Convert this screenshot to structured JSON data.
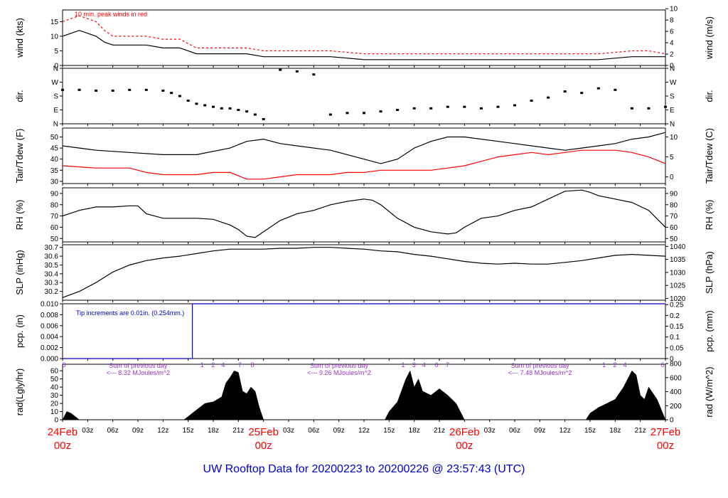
{
  "title": "UW Rooftop Data for 20200223  to  20200226 @ 23:57:43  (UTC)",
  "colors": {
    "series": "#000000",
    "peak": "#ff0000",
    "annotation": "#0000cc",
    "radnote": "#9933cc",
    "datelabel": "#ff0000",
    "title": "#0000cc"
  },
  "time_axis": {
    "range_hours": [
      0,
      72
    ],
    "major_labels": [
      {
        "hour": 0,
        "date": "24Feb",
        "zulu": "00z"
      },
      {
        "hour": 24,
        "date": "25Feb",
        "zulu": "00z"
      },
      {
        "hour": 48,
        "date": "26Feb",
        "zulu": "00z"
      },
      {
        "hour": 72,
        "date": "27Feb",
        "zulu": "00z"
      }
    ],
    "minor_labels": [
      "03z",
      "06z",
      "09z",
      "12z",
      "15z",
      "18z",
      "21z"
    ]
  },
  "chart_data": [
    {
      "type": "line",
      "panel": "wind",
      "ylabel_left": "wind (kts)",
      "ylabel_right": "wind (m/s)",
      "ylim": [
        0,
        19
      ],
      "yticks_left": [
        "0",
        "5",
        "10",
        "15"
      ],
      "yticks_right": [
        "0",
        "2",
        "4",
        "6",
        "8",
        "10"
      ],
      "annotation": "10 min. peak winds in red",
      "series": [
        {
          "name": "",
          "x": [
            0,
            1,
            2,
            3,
            4,
            5,
            6,
            8,
            10,
            12,
            14,
            16,
            18,
            20,
            22,
            24,
            28,
            32,
            36,
            40,
            44,
            48,
            52,
            56,
            60,
            64,
            68,
            70,
            72
          ],
          "y": [
            10,
            11,
            12,
            11,
            10,
            8,
            7,
            7,
            7,
            6,
            6,
            4,
            4,
            4,
            4,
            3,
            3,
            3,
            2,
            2,
            2,
            2,
            2,
            2,
            2,
            2,
            3,
            3,
            3
          ]
        },
        {
          "name": "",
          "x": [
            0,
            1,
            2,
            3,
            4,
            5,
            6,
            8,
            10,
            12,
            14,
            16,
            18,
            20,
            22,
            24,
            28,
            32,
            36,
            40,
            44,
            48,
            52,
            56,
            60,
            64,
            68,
            70,
            72
          ],
          "y": [
            15,
            16,
            17,
            16,
            15,
            12,
            10,
            10,
            10,
            9,
            9,
            6,
            6,
            6,
            6,
            5,
            5,
            5,
            4,
            4,
            4,
            4,
            4,
            4,
            4,
            4,
            5,
            5,
            4
          ]
        }
      ]
    },
    {
      "type": "scatter",
      "panel": "dir",
      "ylabel_left": "dir.",
      "ylabel_right": "dir.",
      "yticks_left": [
        "N",
        "E",
        "S",
        "W",
        "N"
      ],
      "yticks_right": [
        "N",
        "E",
        "S",
        "W",
        "N"
      ],
      "series": [
        {
          "name": "",
          "x": [
            0,
            2,
            4,
            6,
            8,
            10,
            12,
            13,
            14,
            15,
            16,
            17,
            18,
            19,
            20,
            21,
            22,
            23,
            24,
            26,
            28,
            30,
            32,
            34,
            36,
            38,
            40,
            42,
            44,
            46,
            48,
            50,
            52,
            54,
            56,
            58,
            60,
            62,
            64,
            66,
            68,
            70,
            72
          ],
          "y": [
            220,
            220,
            215,
            215,
            220,
            220,
            215,
            200,
            180,
            150,
            130,
            120,
            110,
            100,
            100,
            90,
            80,
            60,
            30,
            350,
            340,
            320,
            60,
            70,
            70,
            80,
            90,
            100,
            100,
            110,
            110,
            100,
            110,
            120,
            150,
            170,
            210,
            200,
            230,
            220,
            100,
            100,
            110
          ]
        }
      ]
    },
    {
      "type": "line",
      "panel": "temperature",
      "ylabel_left": "Tair/Tdew (F)",
      "ylabel_right": "Tair/Tdew (C)",
      "ylim": [
        29,
        54
      ],
      "yticks_left": [
        "30",
        "35",
        "40",
        "45",
        "50"
      ],
      "yticks_right": [
        "0",
        "5",
        "10"
      ],
      "series": [
        {
          "name": "",
          "x": [
            0,
            4,
            8,
            12,
            16,
            20,
            22,
            24,
            26,
            28,
            32,
            36,
            38,
            40,
            42,
            44,
            46,
            48,
            50,
            52,
            54,
            56,
            58,
            60,
            62,
            64,
            66,
            68,
            70,
            72
          ],
          "y": [
            46,
            44,
            43,
            42,
            42,
            45,
            48,
            49,
            47,
            46,
            44,
            40,
            38,
            40,
            45,
            48,
            50,
            50,
            49,
            48,
            47,
            46,
            45,
            44,
            45,
            46,
            47,
            49,
            50,
            52
          ]
        },
        {
          "name": "",
          "x": [
            0,
            4,
            8,
            10,
            12,
            14,
            16,
            18,
            20,
            22,
            24,
            26,
            28,
            30,
            32,
            34,
            36,
            38,
            40,
            42,
            44,
            46,
            48,
            50,
            52,
            54,
            56,
            58,
            60,
            62,
            64,
            66,
            68,
            70,
            72
          ],
          "y": [
            37,
            36,
            36,
            34,
            33,
            33,
            33,
            34,
            34,
            31,
            31,
            32,
            33,
            33,
            33,
            34,
            34,
            35,
            35,
            35,
            35,
            36,
            37,
            39,
            41,
            42,
            43,
            42,
            43,
            44,
            44,
            44,
            43,
            41,
            38
          ]
        }
      ]
    },
    {
      "type": "line",
      "panel": "rh",
      "ylabel_left": "RH (%)",
      "ylabel_right": "RH (%)",
      "ylim": [
        47,
        95
      ],
      "yticks_left": [
        "50",
        "60",
        "70",
        "80",
        "90"
      ],
      "yticks_right": [
        "50",
        "60",
        "70",
        "80",
        "90"
      ],
      "series": [
        {
          "name": "",
          "x": [
            0,
            2,
            4,
            6,
            8,
            9,
            10,
            12,
            14,
            16,
            18,
            20,
            21,
            22,
            23,
            24,
            26,
            28,
            30,
            32,
            34,
            36,
            37,
            38,
            40,
            42,
            44,
            46,
            47,
            48,
            50,
            52,
            54,
            56,
            58,
            60,
            62,
            63,
            64,
            66,
            68,
            70,
            72
          ],
          "y": [
            70,
            75,
            78,
            78,
            79,
            79,
            72,
            68,
            68,
            68,
            67,
            62,
            58,
            52,
            51,
            56,
            66,
            72,
            75,
            80,
            83,
            85,
            84,
            80,
            68,
            60,
            56,
            54,
            55,
            60,
            68,
            70,
            75,
            78,
            85,
            92,
            93,
            91,
            88,
            85,
            82,
            75,
            60
          ]
        }
      ]
    },
    {
      "type": "line",
      "panel": "slp",
      "ylabel_left": "SLP (inHg)",
      "ylabel_right": "SLP (hPa)",
      "ylim": [
        30.1,
        30.73
      ],
      "yticks_left": [
        "30.2",
        "30.3",
        "30.4",
        "30.5",
        "30.6",
        "30.7"
      ],
      "yticks_right": [
        "1020",
        "1025",
        "1030",
        "1035",
        "1040"
      ],
      "series": [
        {
          "name": "",
          "x": [
            0,
            2,
            4,
            6,
            8,
            10,
            12,
            14,
            16,
            18,
            20,
            22,
            24,
            26,
            28,
            30,
            32,
            34,
            36,
            38,
            40,
            42,
            44,
            46,
            48,
            50,
            52,
            54,
            56,
            58,
            60,
            62,
            64,
            66,
            68,
            70,
            72
          ],
          "y": [
            30.13,
            30.2,
            30.3,
            30.42,
            30.5,
            30.55,
            30.58,
            30.6,
            30.63,
            30.66,
            30.68,
            30.68,
            30.68,
            30.69,
            30.69,
            30.7,
            30.7,
            30.69,
            30.68,
            30.66,
            30.65,
            30.62,
            30.6,
            30.57,
            30.54,
            30.52,
            30.51,
            30.52,
            30.51,
            30.51,
            30.53,
            30.55,
            30.58,
            30.61,
            30.62,
            30.61,
            30.6
          ]
        }
      ]
    },
    {
      "type": "line",
      "panel": "precip",
      "ylabel_left": "pcp. (in)",
      "ylabel_right": "pcp. (mm)",
      "ylim": [
        0,
        0.01
      ],
      "yticks_left": [
        "0.000",
        "0.002",
        "0.004",
        "0.006",
        "0.008",
        "0.010"
      ],
      "yticks_right": [
        "0",
        "0.05",
        "0.1",
        "0.15",
        "0.2",
        "0.25"
      ],
      "annotation": "Tip increments are 0.01in. (0.254mm.)",
      "series": [
        {
          "name": "",
          "x": [
            0,
            15.5,
            15.5,
            72
          ],
          "y": [
            0,
            0,
            0.01,
            0.01
          ]
        }
      ]
    },
    {
      "type": "area",
      "panel": "radiation",
      "ylabel_left": "rad(Lgly/hr)",
      "ylabel_right": "rad (W/m^2)",
      "ylim": [
        0,
        68
      ],
      "yticks_left": [
        "0",
        "10",
        "20",
        "30",
        "40",
        "50",
        "60"
      ],
      "yticks_right": [
        "0",
        "200",
        "400",
        "600",
        "800"
      ],
      "notes": [
        {
          "hour": 12,
          "line1": "Sum of previous day",
          "line2": "<--- 8.32 MJoules/m^2"
        },
        {
          "hour": 36,
          "line1": "Sum of previous day",
          "line2": "<--- 9.26 MJoules/m^2"
        },
        {
          "hour": 60,
          "line1": "Sum of previous day",
          "line2": "<--- 7.48 MJoules/m^2"
        }
      ],
      "hour_markers": [
        "8",
        "1",
        "2",
        "4",
        "7",
        "8",
        "1",
        "3",
        "4",
        "6",
        "7",
        "1",
        "2",
        "4",
        "6"
      ],
      "series": [
        {
          "name": "",
          "x": [
            0,
            0.5,
            1,
            1.5,
            2,
            14.5,
            15,
            16,
            17,
            18,
            19,
            19.5,
            20,
            20.5,
            21,
            21.5,
            22,
            22.5,
            23,
            23.5,
            24,
            38.5,
            39,
            40,
            41,
            41.5,
            42,
            42.5,
            43,
            44,
            45,
            46,
            47,
            48,
            62.5,
            63,
            64,
            65,
            66,
            67,
            67.5,
            68,
            68.5,
            69,
            69.5,
            70,
            71,
            72
          ],
          "y": [
            0,
            10,
            8,
            4,
            0,
            0,
            4,
            12,
            20,
            22,
            28,
            45,
            52,
            60,
            58,
            35,
            32,
            40,
            35,
            15,
            0,
            0,
            10,
            22,
            50,
            60,
            40,
            50,
            35,
            30,
            38,
            30,
            20,
            0,
            0,
            8,
            15,
            20,
            25,
            40,
            50,
            60,
            55,
            30,
            25,
            40,
            25,
            0
          ]
        }
      ]
    }
  ]
}
